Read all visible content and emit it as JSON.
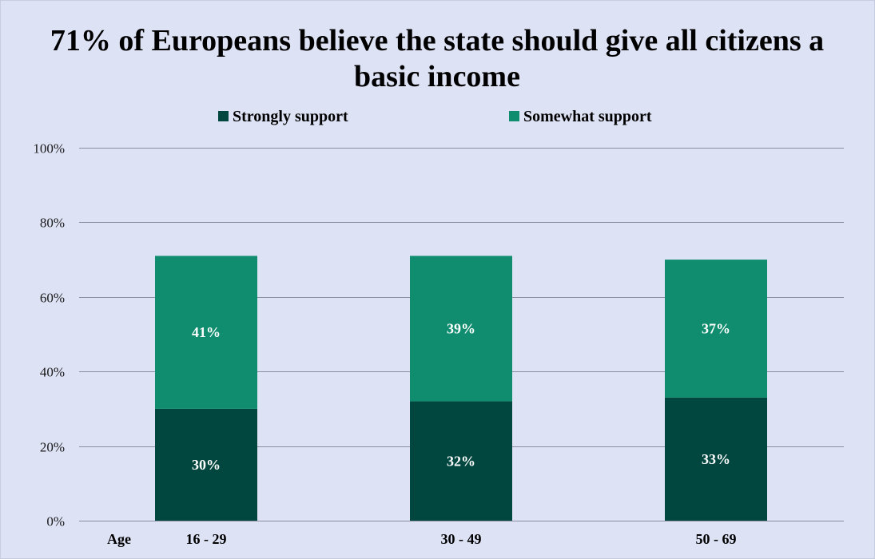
{
  "chart_data": {
    "type": "bar",
    "stacked": true,
    "title": "71% of Europeans believe the state should give all citizens a basic income",
    "xlabel": "Age",
    "ylabel": "",
    "categories": [
      "16 - 29",
      "30 - 49",
      "50 - 69"
    ],
    "series": [
      {
        "name": "Strongly support",
        "values": [
          30,
          32,
          33
        ],
        "labels": [
          "30%",
          "32%",
          "33%"
        ],
        "color": "#01473f"
      },
      {
        "name": "Somewhat support",
        "values": [
          41,
          39,
          37
        ],
        "labels": [
          "41%",
          "39%",
          "37%"
        ],
        "color": "#0f8d6e"
      }
    ],
    "ylim": [
      0,
      100
    ],
    "yticks": [
      0,
      20,
      40,
      60,
      80,
      100
    ],
    "ytick_labels": [
      "0%",
      "20%",
      "40%",
      "60%",
      "80%",
      "100%"
    ],
    "grid": true,
    "legend_position": "top",
    "colors": {
      "background": "#dde2f5",
      "gridline": "#8a8fa0",
      "strongly": "#01473f",
      "somewhat": "#0f8d6e"
    }
  }
}
